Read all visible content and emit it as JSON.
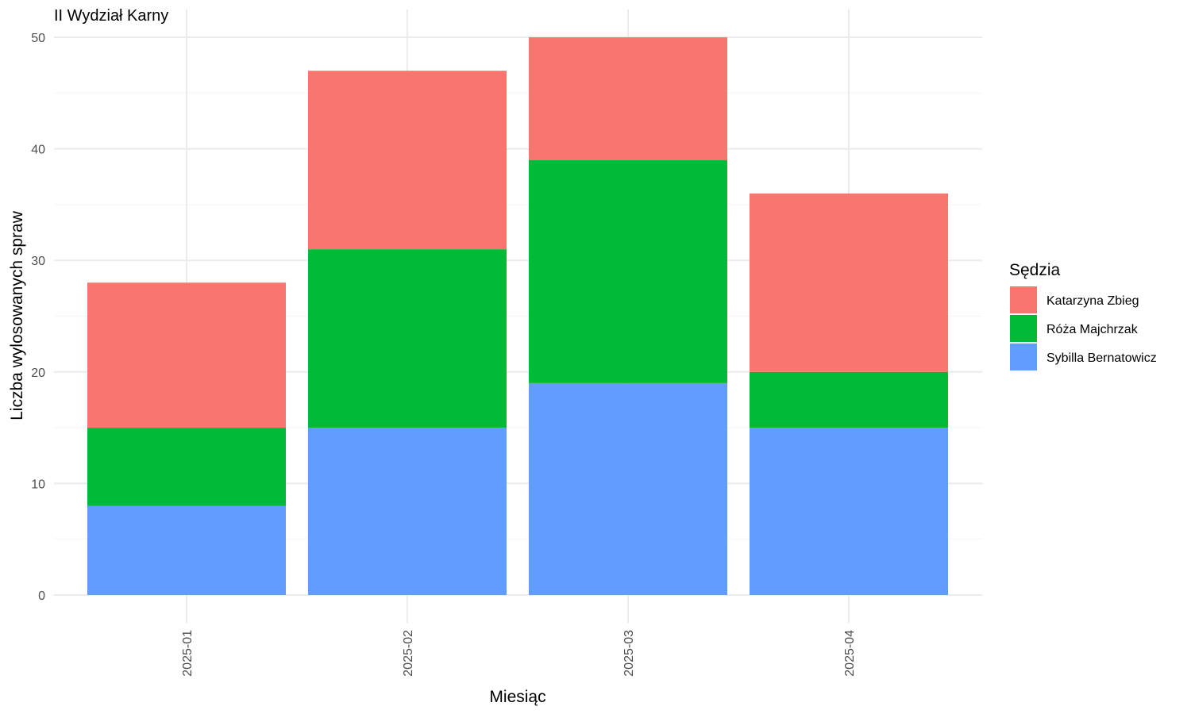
{
  "chart_data": {
    "type": "bar",
    "stacked": true,
    "title": "II Wydział Karny",
    "xlabel": "Miesiąc",
    "ylabel": "Liczba wylosowanych spraw",
    "categories": [
      "2025-01",
      "2025-02",
      "2025-03",
      "2025-04"
    ],
    "ylim": [
      0,
      50
    ],
    "yticks": [
      0,
      10,
      20,
      30,
      40,
      50
    ],
    "grid": true,
    "legend": {
      "title": "Sędzia",
      "position": "right"
    },
    "series": [
      {
        "name": "Sybilla Bernatowicz",
        "color": "#619CFF",
        "values": [
          8,
          15,
          19,
          15
        ]
      },
      {
        "name": "Róża Majchrzak",
        "color": "#00BA38",
        "values": [
          7,
          16,
          20,
          5
        ]
      },
      {
        "name": "Katarzyna Zbieg",
        "color": "#F8766D",
        "values": [
          13,
          16,
          11,
          16
        ]
      }
    ],
    "legend_order": [
      "Katarzyna Zbieg",
      "Róża Majchrzak",
      "Sybilla Bernatowicz"
    ]
  }
}
